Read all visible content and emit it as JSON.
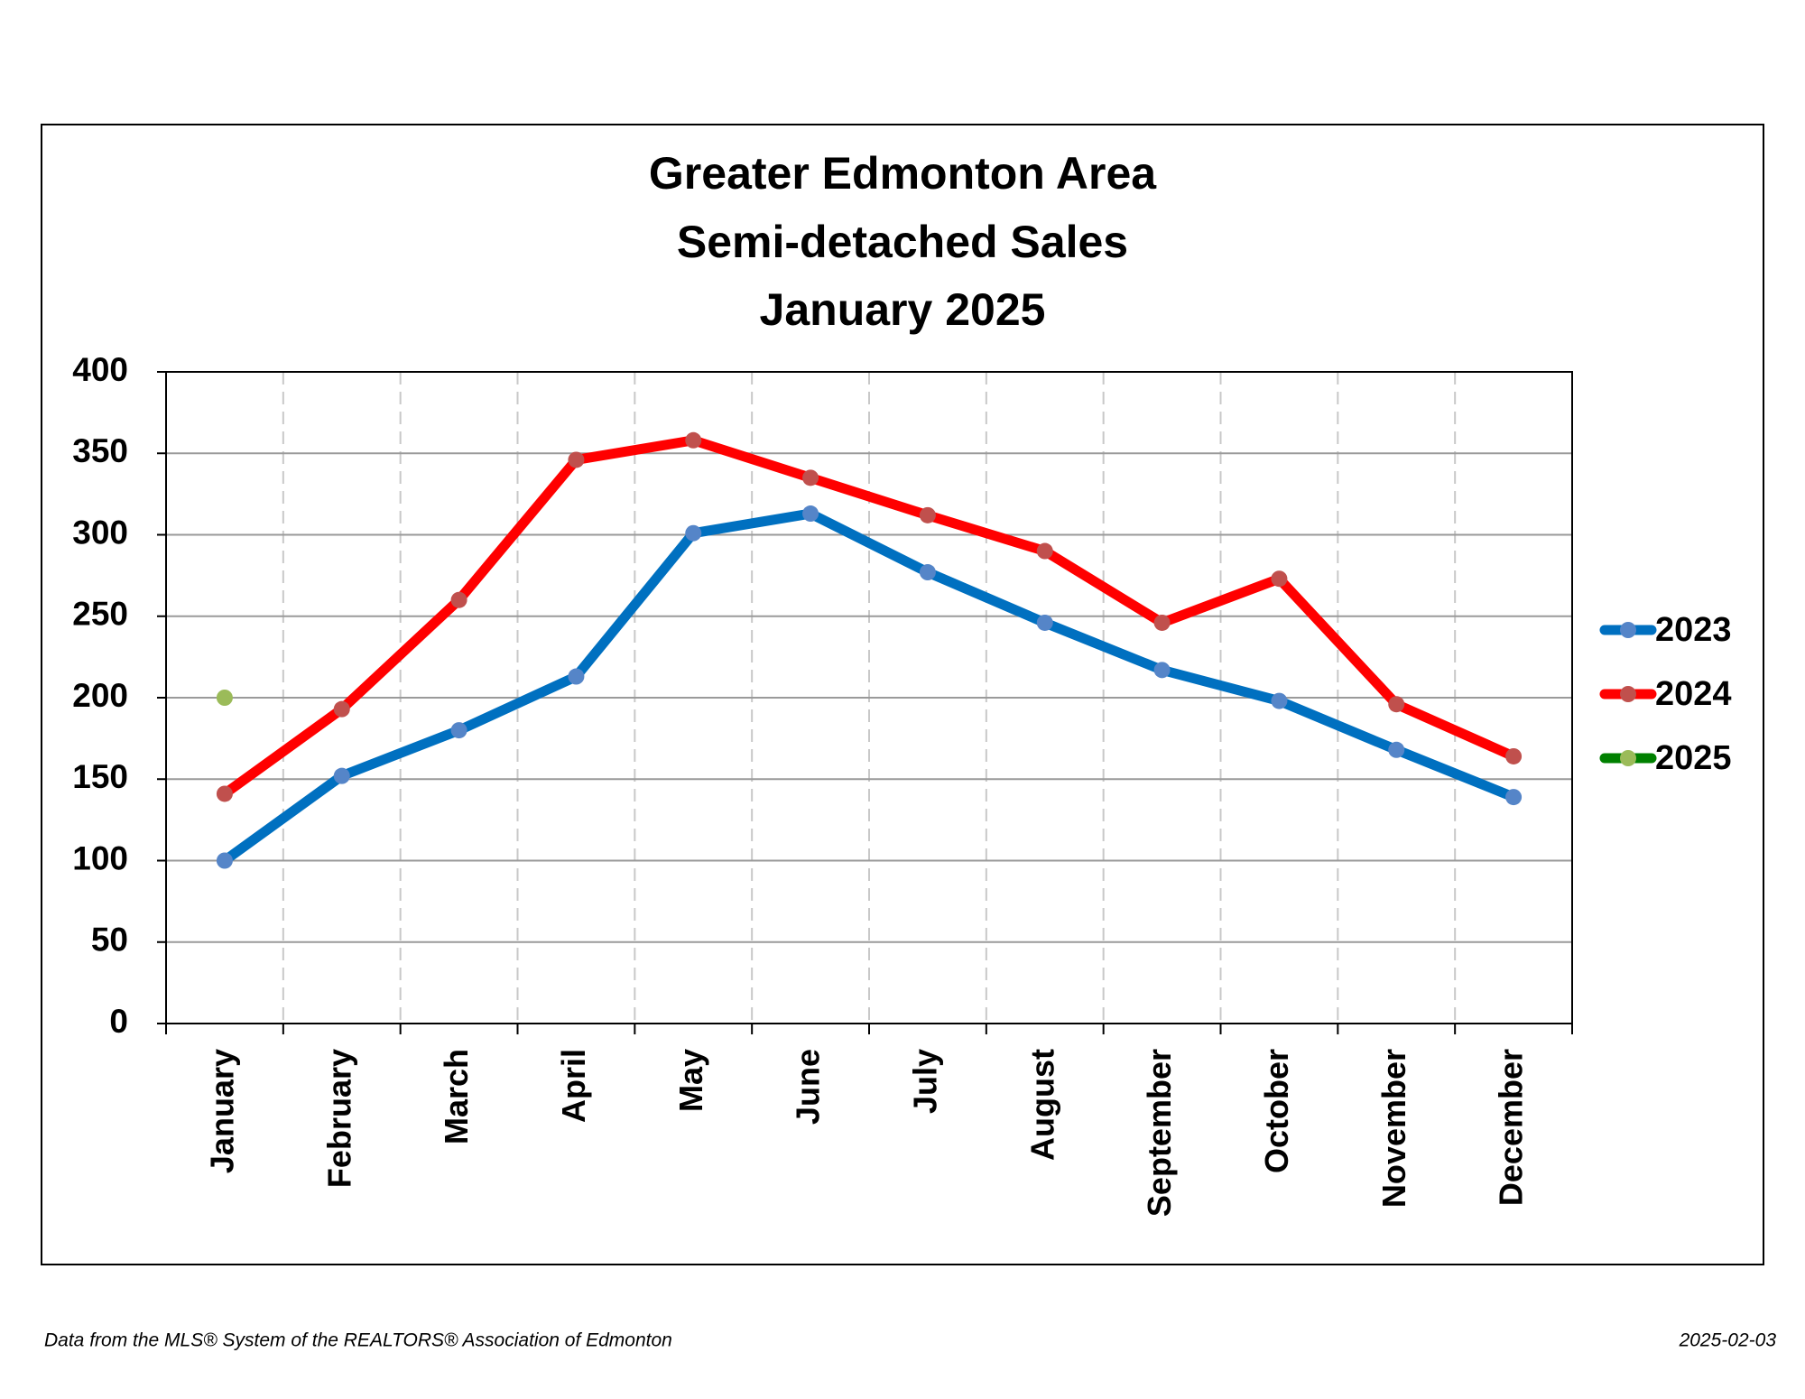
{
  "chart_data": {
    "type": "line",
    "title": [
      "Greater Edmonton Area",
      "Semi-detached Sales",
      "January 2025"
    ],
    "categories": [
      "January",
      "February",
      "March",
      "April",
      "May",
      "June",
      "July",
      "August",
      "September",
      "October",
      "November",
      "December"
    ],
    "series": [
      {
        "name": "2023",
        "color": "#0070c0",
        "marker_color": "#5585c8",
        "values": [
          100,
          152,
          180,
          213,
          301,
          313,
          277,
          246,
          217,
          198,
          168,
          139
        ]
      },
      {
        "name": "2024",
        "color": "#ff0000",
        "marker_color": "#c0504d",
        "values": [
          141,
          193,
          260,
          346,
          358,
          335,
          312,
          290,
          246,
          273,
          196,
          164
        ]
      },
      {
        "name": "2025",
        "color": "#008000",
        "marker_color": "#9bbb59",
        "values": [
          200,
          null,
          null,
          null,
          null,
          null,
          null,
          null,
          null,
          null,
          null,
          null
        ]
      }
    ],
    "ylim": [
      0,
      400
    ],
    "yticks": [
      0,
      50,
      100,
      150,
      200,
      250,
      300,
      350,
      400
    ],
    "grid": true,
    "legend": "right",
    "footer": {
      "source": "Data from the MLS® System of the REALTORS® Association of Edmonton",
      "date": "2025-02-03"
    }
  }
}
